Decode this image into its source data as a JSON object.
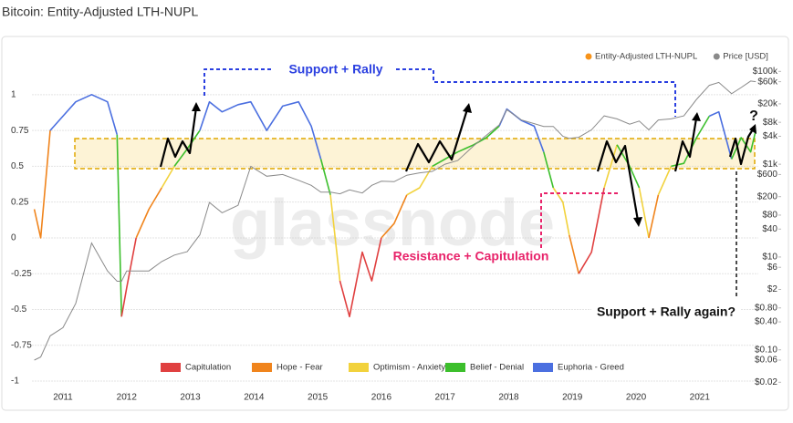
{
  "chart_data": {
    "type": "line",
    "title": "Bitcoin: Entity-Adjusted LTH-NUPL",
    "watermark": "glassnode",
    "x": [
      2010.55,
      2010.65,
      2010.8,
      2011.0,
      2011.2,
      2011.45,
      2011.7,
      2011.85,
      2011.92,
      2012.0,
      2012.15,
      2012.35,
      2012.55,
      2012.75,
      2012.95,
      2013.15,
      2013.3,
      2013.5,
      2013.75,
      2013.95,
      2014.2,
      2014.45,
      2014.7,
      2014.9,
      2015.05,
      2015.2,
      2015.35,
      2015.5,
      2015.7,
      2015.85,
      2016.0,
      2016.2,
      2016.4,
      2016.6,
      2016.8,
      2017.0,
      2017.2,
      2017.45,
      2017.65,
      2017.85,
      2017.97,
      2018.2,
      2018.4,
      2018.55,
      2018.7,
      2018.85,
      2018.95,
      2019.1,
      2019.3,
      2019.5,
      2019.7,
      2019.9,
      2020.05,
      2020.2,
      2020.35,
      2020.55,
      2020.75,
      2020.95,
      2021.15,
      2021.3,
      2021.5,
      2021.65,
      2021.8,
      2021.88
    ],
    "xlim": [
      2010.52,
      2021.92
    ],
    "xticks": [
      2011,
      2012,
      2013,
      2014,
      2015,
      2016,
      2017,
      2018,
      2019,
      2020,
      2021
    ],
    "ylim": [
      -1.08,
      1.26
    ],
    "yticks": [
      -1,
      -0.75,
      -0.5,
      -0.25,
      0,
      0.25,
      0.5,
      0.75,
      1
    ],
    "y2log": true,
    "y2lim": [
      0.012,
      200000
    ],
    "y2ticks": [
      {
        "value": 100000,
        "label": "$100k"
      },
      {
        "value": 60000,
        "label": "$60k"
      },
      {
        "value": 20000,
        "label": "$20k"
      },
      {
        "value": 8000,
        "label": "$8k"
      },
      {
        "value": 4000,
        "label": "$4k"
      },
      {
        "value": 1000,
        "label": "$1k"
      },
      {
        "value": 600,
        "label": "$600"
      },
      {
        "value": 200,
        "label": "$200"
      },
      {
        "value": 80,
        "label": "$80"
      },
      {
        "value": 40,
        "label": "$40"
      },
      {
        "value": 10,
        "label": "$10"
      },
      {
        "value": 6,
        "label": "$6"
      },
      {
        "value": 2,
        "label": "$2"
      },
      {
        "value": 0.8,
        "label": "$0.80"
      },
      {
        "value": 0.4,
        "label": "$0.40"
      },
      {
        "value": 0.1,
        "label": "$0.10"
      },
      {
        "value": 0.06,
        "label": "$0.06"
      },
      {
        "value": 0.02,
        "label": "$0.02"
      }
    ],
    "grid": true,
    "legend": "top-right",
    "series": [
      {
        "name": "Entity-Adjusted LTH-NUPL",
        "color": "#f7931a",
        "values": [
          0.2,
          0.0,
          0.75,
          0.85,
          0.95,
          1.0,
          0.95,
          0.72,
          -0.55,
          -0.35,
          0.0,
          0.2,
          0.35,
          0.5,
          0.62,
          0.75,
          0.95,
          0.88,
          0.93,
          0.95,
          0.75,
          0.92,
          0.95,
          0.78,
          0.55,
          0.3,
          -0.3,
          -0.55,
          -0.1,
          -0.3,
          0.0,
          0.1,
          0.3,
          0.35,
          0.5,
          0.55,
          0.6,
          0.65,
          0.7,
          0.78,
          0.9,
          0.82,
          0.78,
          0.6,
          0.35,
          0.25,
          0.02,
          -0.25,
          -0.1,
          0.35,
          0.65,
          0.5,
          0.35,
          0.0,
          0.3,
          0.5,
          0.52,
          0.7,
          0.85,
          0.88,
          0.55,
          0.7,
          0.6,
          0.75
        ],
        "point_colors": [
          "#f0841c",
          "#f0841c",
          "#4b6fe0",
          "#4b6fe0",
          "#4b6fe0",
          "#4b6fe0",
          "#4b6fe0",
          "#3cbf2c",
          "#e04040",
          "#e04040",
          "#f0841c",
          "#f0841c",
          "#f2d23c",
          "#3cbf2c",
          "#3cbf2c",
          "#4b6fe0",
          "#4b6fe0",
          "#4b6fe0",
          "#4b6fe0",
          "#4b6fe0",
          "#4b6fe0",
          "#4b6fe0",
          "#4b6fe0",
          "#4b6fe0",
          "#3cbf2c",
          "#f2d23c",
          "#e04040",
          "#e04040",
          "#e04040",
          "#e04040",
          "#f0841c",
          "#f0841c",
          "#f2d23c",
          "#f2d23c",
          "#3cbf2c",
          "#3cbf2c",
          "#3cbf2c",
          "#3cbf2c",
          "#3cbf2c",
          "#4b6fe0",
          "#4b6fe0",
          "#4b6fe0",
          "#4b6fe0",
          "#3cbf2c",
          "#f2d23c",
          "#f2d23c",
          "#f0841c",
          "#e04040",
          "#e04040",
          "#f2d23c",
          "#3cbf2c",
          "#3cbf2c",
          "#f2d23c",
          "#f0841c",
          "#f2d23c",
          "#3cbf2c",
          "#3cbf2c",
          "#3cbf2c",
          "#4b6fe0",
          "#4b6fe0",
          "#3cbf2c",
          "#3cbf2c",
          "#3cbf2c",
          "#4b6fe0"
        ]
      },
      {
        "name": "Price [USD]",
        "color": "#8a8a8a",
        "axis": "y2",
        "values": [
          0.06,
          0.07,
          0.2,
          0.3,
          1,
          20,
          5,
          3,
          3,
          5,
          5,
          5,
          8,
          11,
          13,
          30,
          150,
          90,
          130,
          900,
          550,
          600,
          450,
          350,
          250,
          250,
          230,
          280,
          240,
          350,
          430,
          420,
          580,
          650,
          700,
          1000,
          1200,
          2500,
          4200,
          7000,
          15000,
          9000,
          7500,
          6500,
          6500,
          4000,
          3600,
          3800,
          5500,
          11000,
          9500,
          7300,
          8500,
          5500,
          9000,
          9500,
          11000,
          25000,
          50000,
          58000,
          33000,
          45000,
          62000,
          60000
        ]
      }
    ],
    "zones": [
      {
        "name": "Capitulation",
        "color": "#e04040"
      },
      {
        "name": "Hope - Fear",
        "color": "#f0841c"
      },
      {
        "name": "Optimism - Anxiety",
        "color": "#f2d23c"
      },
      {
        "name": "Belief - Denial",
        "color": "#3cbf2c"
      },
      {
        "name": "Euphoria - Greed",
        "color": "#4b6fe0"
      }
    ],
    "annotations": [
      "Support + Rally",
      "Resistance + Capitulation",
      "Support + Rally again?",
      "?"
    ]
  }
}
